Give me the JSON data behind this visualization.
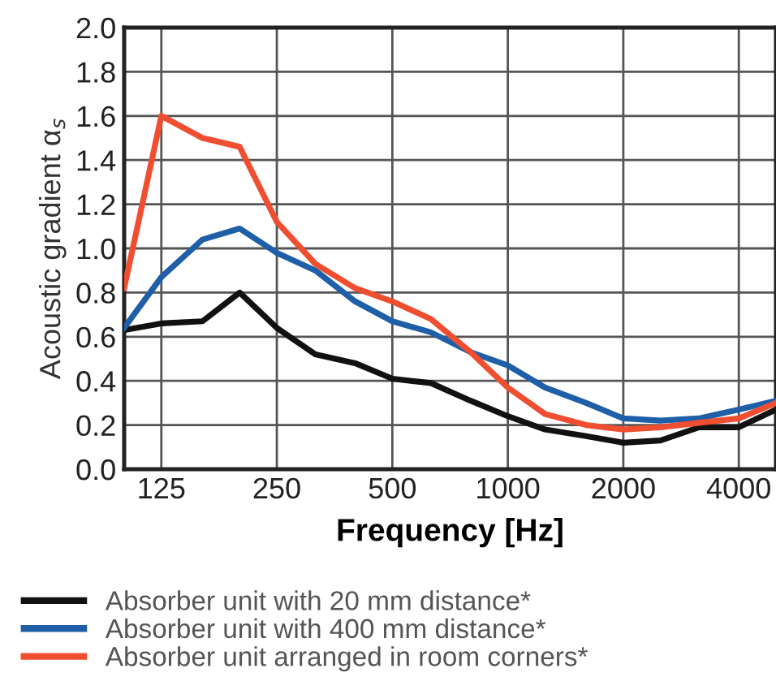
{
  "chart_data": {
    "type": "line",
    "xlabel": "Frequency [Hz]",
    "ylabel": "Acoustic gradient α$_{s}$",
    "log": "x",
    "x": [
      100,
      125,
      160,
      200,
      250,
      315,
      400,
      500,
      630,
      800,
      1000,
      1250,
      1600,
      2000,
      2500,
      3150,
      4000,
      5000
    ],
    "series": [
      {
        "name": "Absorber unit with 20 mm distance*",
        "color": "#111111",
        "values": [
          0.63,
          0.66,
          0.67,
          0.8,
          0.64,
          0.52,
          0.48,
          0.41,
          0.39,
          0.31,
          0.24,
          0.18,
          0.15,
          0.12,
          0.13,
          0.19,
          0.19,
          0.27
        ]
      },
      {
        "name": "Absorber unit with 400 mm distance*",
        "color": "#1f5fa8",
        "values": [
          0.64,
          0.87,
          1.04,
          1.09,
          0.98,
          0.9,
          0.76,
          0.67,
          0.62,
          0.53,
          0.47,
          0.37,
          0.3,
          0.23,
          0.22,
          0.23,
          0.27,
          0.31
        ]
      },
      {
        "name": "Absorber unit arranged in room corners*",
        "color": "#f04e30",
        "values": [
          0.82,
          1.6,
          1.5,
          1.46,
          1.12,
          0.93,
          0.82,
          0.76,
          0.68,
          0.53,
          0.37,
          0.25,
          0.2,
          0.18,
          0.19,
          0.21,
          0.23,
          0.3
        ]
      }
    ],
    "xlim": [
      100,
      5000
    ],
    "xticks": [
      125,
      250,
      500,
      1000,
      2000,
      4000
    ],
    "ylim": [
      0,
      2.0
    ],
    "yticks": [
      {
        "value": 0,
        "label": "0.0"
      },
      {
        "value": 0.2,
        "label": "0.2"
      },
      {
        "value": 0.4,
        "label": "0.4"
      },
      {
        "value": 0.6,
        "label": "0.6"
      },
      {
        "value": 0.8,
        "label": "0.8"
      },
      {
        "value": 1.0,
        "label": "1.0"
      },
      {
        "value": 1.2,
        "label": "1.2"
      },
      {
        "value": 1.4,
        "label": "1.4"
      },
      {
        "value": 1.6,
        "label": "1.6"
      },
      {
        "value": 1.8,
        "label": "1.8"
      },
      {
        "value": 2.0,
        "label": "2.0"
      }
    ],
    "grid": true,
    "legend": "bottom",
    "marker": "none",
    "line_style": "solid"
  }
}
